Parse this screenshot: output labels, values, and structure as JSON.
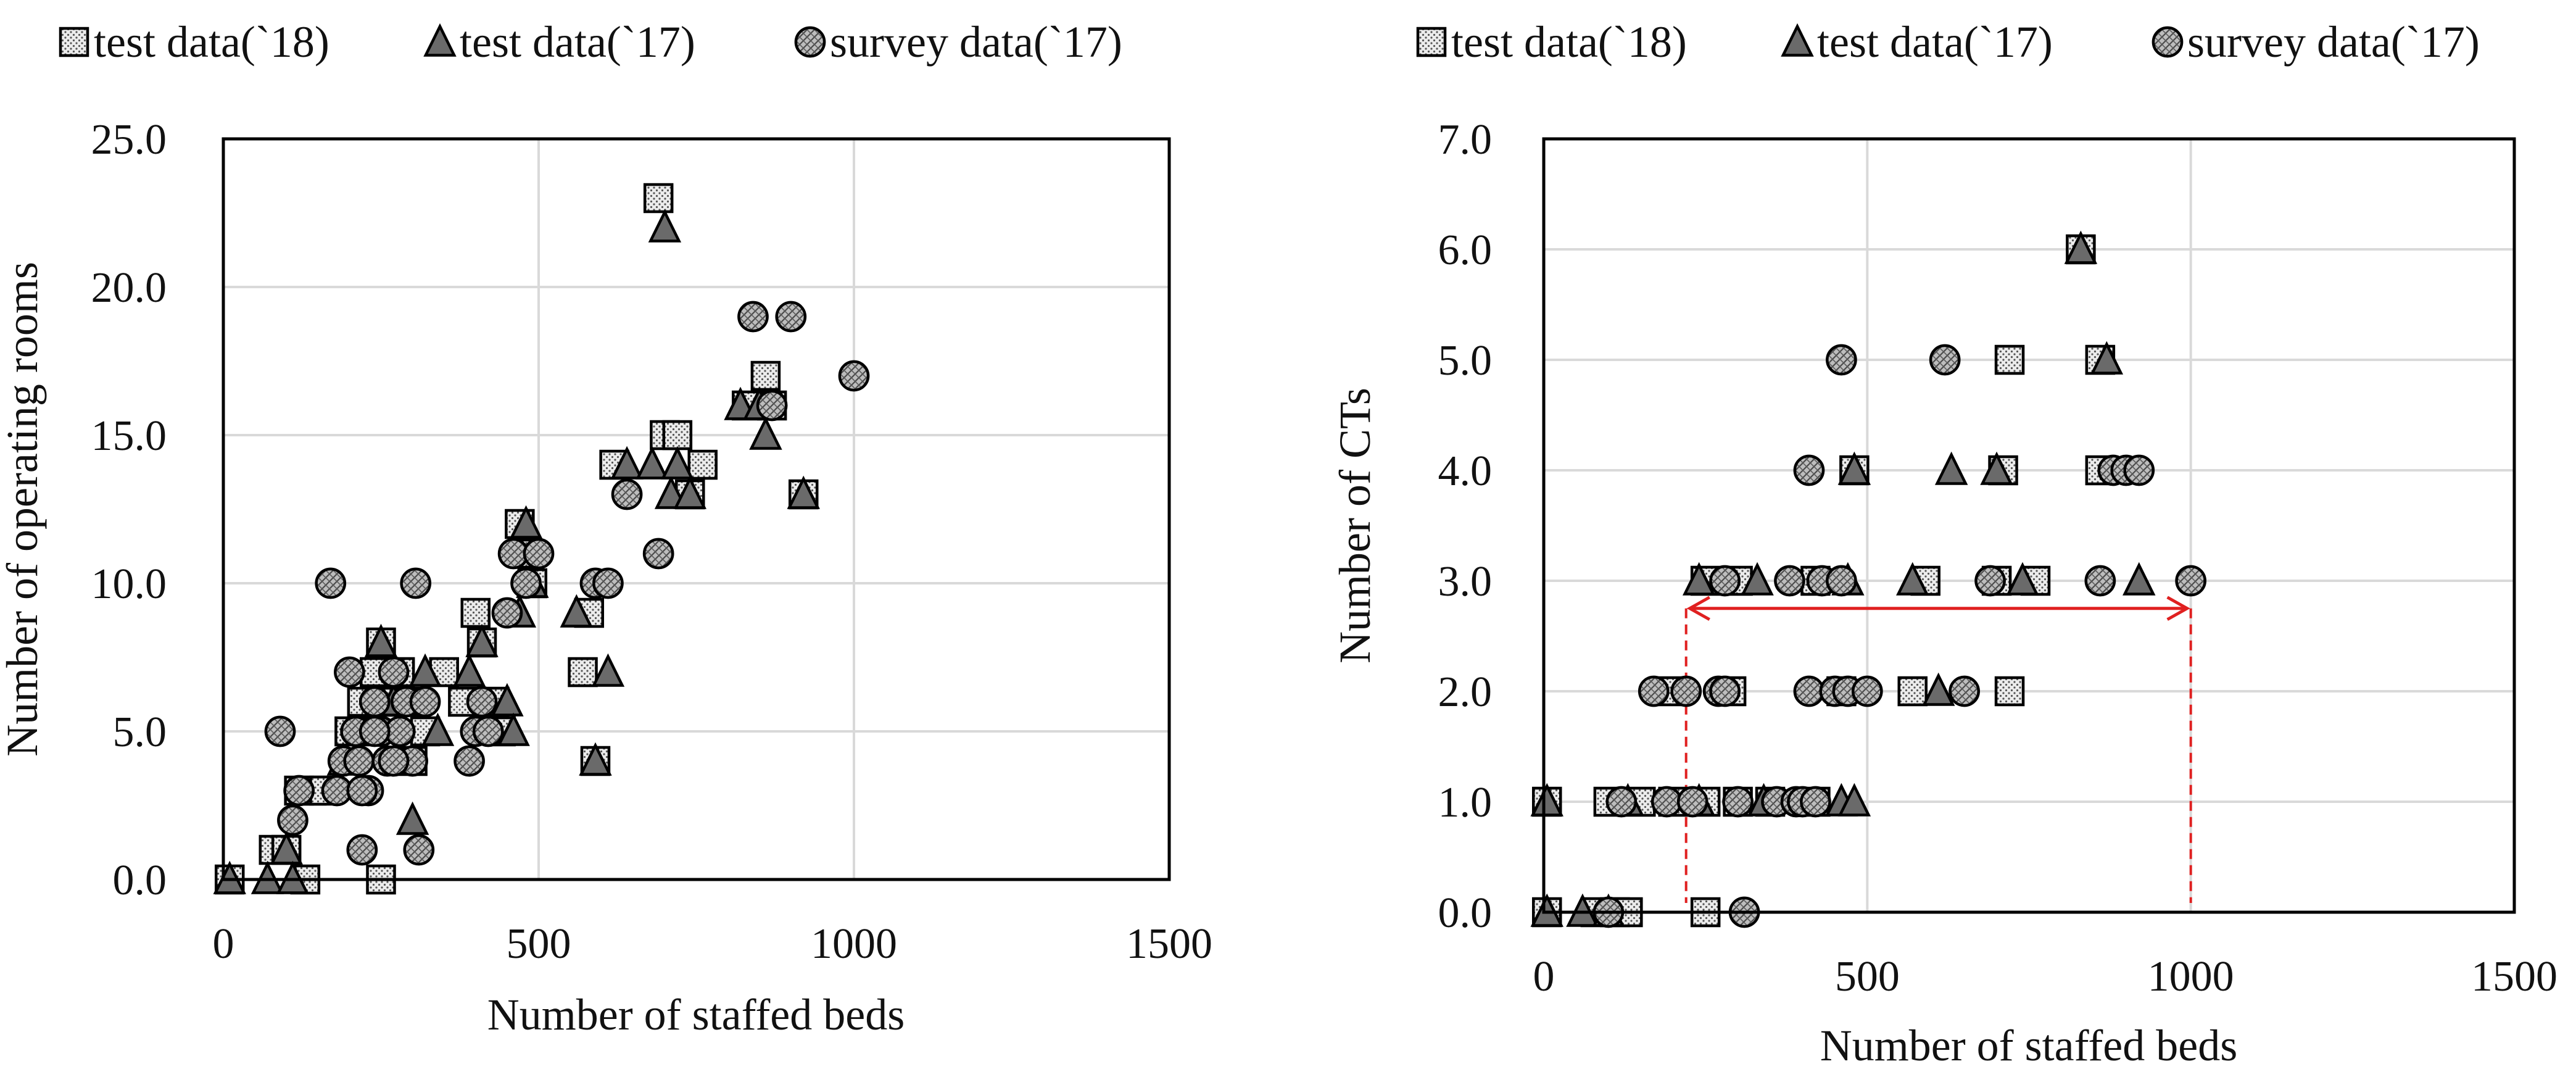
{
  "chart_data": [
    {
      "type": "scatter",
      "title": "",
      "xlabel": "Number of staffed beds",
      "ylabel": "Number of operating rooms",
      "xlim": [
        0,
        1500
      ],
      "ylim": [
        0,
        25
      ],
      "xticks": [
        0,
        500,
        1000,
        1500
      ],
      "yticks": [
        0,
        5,
        10,
        15,
        20,
        25
      ],
      "xtick_labels": [
        "0",
        "500",
        "1000",
        "1500"
      ],
      "ytick_labels": [
        "0.0",
        "5.0",
        "10.0",
        "15.0",
        "20.0",
        "25.0"
      ],
      "grid": true,
      "legend_position": "top",
      "series": [
        {
          "name": "test data(`18)",
          "marker": "square",
          "points": [
            [
              10,
              0
            ],
            [
              80,
              1
            ],
            [
              100,
              1
            ],
            [
              120,
              3
            ],
            [
              140,
              3
            ],
            [
              160,
              3
            ],
            [
              130,
              0
            ],
            [
              200,
              5
            ],
            [
              220,
              6
            ],
            [
              240,
              7
            ],
            [
              250,
              8
            ],
            [
              260,
              6
            ],
            [
              280,
              7
            ],
            [
              300,
              6
            ],
            [
              320,
              5
            ],
            [
              350,
              7
            ],
            [
              380,
              6
            ],
            [
              400,
              9
            ],
            [
              410,
              8
            ],
            [
              430,
              6
            ],
            [
              440,
              5
            ],
            [
              470,
              12
            ],
            [
              490,
              10
            ],
            [
              480,
              11
            ],
            [
              570,
              7
            ],
            [
              580,
              9
            ],
            [
              590,
              4
            ],
            [
              620,
              14
            ],
            [
              690,
              23
            ],
            [
              700,
              15
            ],
            [
              720,
              15
            ],
            [
              740,
              13
            ],
            [
              760,
              14
            ],
            [
              830,
              16
            ],
            [
              860,
              17
            ],
            [
              870,
              16
            ],
            [
              920,
              13
            ],
            [
              250,
              0
            ],
            [
              300,
              4
            ],
            [
              230,
              5
            ]
          ]
        },
        {
          "name": "test data(`17)",
          "marker": "triangle",
          "points": [
            [
              10,
              0
            ],
            [
              70,
              0
            ],
            [
              100,
              1
            ],
            [
              110,
              0
            ],
            [
              190,
              4
            ],
            [
              220,
              5
            ],
            [
              250,
              8
            ],
            [
              270,
              6
            ],
            [
              300,
              2
            ],
            [
              320,
              7
            ],
            [
              340,
              5
            ],
            [
              390,
              7
            ],
            [
              410,
              8
            ],
            [
              450,
              6
            ],
            [
              460,
              5
            ],
            [
              470,
              9
            ],
            [
              480,
              12
            ],
            [
              490,
              10
            ],
            [
              560,
              9
            ],
            [
              610,
              7
            ],
            [
              590,
              4
            ],
            [
              640,
              14
            ],
            [
              680,
              14
            ],
            [
              700,
              22
            ],
            [
              710,
              13
            ],
            [
              720,
              14
            ],
            [
              740,
              13
            ],
            [
              820,
              16
            ],
            [
              850,
              16
            ],
            [
              860,
              15
            ],
            [
              920,
              13
            ],
            [
              280,
              4
            ],
            [
              300,
              6
            ]
          ]
        },
        {
          "name": "survey data(`17)",
          "marker": "circle",
          "points": [
            [
              90,
              5
            ],
            [
              110,
              2
            ],
            [
              120,
              3
            ],
            [
              170,
              10
            ],
            [
              180,
              3
            ],
            [
              190,
              4
            ],
            [
              200,
              7
            ],
            [
              210,
              5
            ],
            [
              215,
              4
            ],
            [
              220,
              1
            ],
            [
              230,
              3
            ],
            [
              240,
              6
            ],
            [
              250,
              5
            ],
            [
              260,
              4
            ],
            [
              270,
              7
            ],
            [
              280,
              5
            ],
            [
              290,
              6
            ],
            [
              300,
              4
            ],
            [
              305,
              10
            ],
            [
              310,
              1
            ],
            [
              320,
              6
            ],
            [
              390,
              4
            ],
            [
              400,
              5
            ],
            [
              410,
              6
            ],
            [
              420,
              5
            ],
            [
              450,
              9
            ],
            [
              460,
              11
            ],
            [
              480,
              10
            ],
            [
              500,
              11
            ],
            [
              590,
              10
            ],
            [
              610,
              10
            ],
            [
              640,
              13
            ],
            [
              690,
              11
            ],
            [
              840,
              19
            ],
            [
              870,
              16
            ],
            [
              900,
              19
            ],
            [
              1000,
              17
            ],
            [
              220,
              3
            ],
            [
              240,
              5
            ],
            [
              270,
              4
            ]
          ]
        }
      ]
    },
    {
      "type": "scatter",
      "title": "",
      "xlabel": "Number of staffed beds",
      "ylabel": "Number of CTs",
      "xlim": [
        0,
        1500
      ],
      "ylim": [
        0,
        7
      ],
      "xticks": [
        0,
        500,
        1000,
        1500
      ],
      "yticks": [
        0,
        1,
        2,
        3,
        4,
        5,
        6,
        7
      ],
      "xtick_labels": [
        "0",
        "500",
        "1000",
        "1500"
      ],
      "ytick_labels": [
        "0.0",
        "1.0",
        "2.0",
        "3.0",
        "4.0",
        "5.0",
        "6.0",
        "7.0"
      ],
      "grid": true,
      "legend_position": "top",
      "annotation": {
        "type": "range-arrow",
        "color": "#e02020",
        "from_x": 220,
        "to_x": 1000,
        "arrow_y": 2.75,
        "drop_to_y": 0
      },
      "series": [
        {
          "name": "test data(`18)",
          "marker": "square",
          "points": [
            [
              5,
              0
            ],
            [
              80,
              0
            ],
            [
              110,
              0
            ],
            [
              130,
              0
            ],
            [
              5,
              1
            ],
            [
              100,
              1
            ],
            [
              150,
              1
            ],
            [
              200,
              1
            ],
            [
              250,
              1
            ],
            [
              300,
              1
            ],
            [
              350,
              1
            ],
            [
              420,
              1
            ],
            [
              200,
              2
            ],
            [
              290,
              2
            ],
            [
              460,
              2
            ],
            [
              570,
              2
            ],
            [
              720,
              2
            ],
            [
              250,
              3
            ],
            [
              300,
              3
            ],
            [
              420,
              3
            ],
            [
              590,
              3
            ],
            [
              700,
              3
            ],
            [
              760,
              3
            ],
            [
              480,
              4
            ],
            [
              710,
              4
            ],
            [
              860,
              4
            ],
            [
              720,
              5
            ],
            [
              860,
              5
            ],
            [
              830,
              6
            ],
            [
              250,
              0
            ]
          ]
        },
        {
          "name": "test data(`17)",
          "marker": "triangle",
          "points": [
            [
              5,
              0
            ],
            [
              60,
              0
            ],
            [
              100,
              0
            ],
            [
              5,
              1
            ],
            [
              130,
              1
            ],
            [
              240,
              1
            ],
            [
              340,
              1
            ],
            [
              460,
              1
            ],
            [
              480,
              1
            ],
            [
              610,
              2
            ],
            [
              240,
              3
            ],
            [
              330,
              3
            ],
            [
              470,
              3
            ],
            [
              570,
              3
            ],
            [
              740,
              3
            ],
            [
              920,
              3
            ],
            [
              480,
              4
            ],
            [
              630,
              4
            ],
            [
              700,
              4
            ],
            [
              870,
              5
            ],
            [
              830,
              6
            ]
          ]
        },
        {
          "name": "survey data(`17)",
          "marker": "circle",
          "points": [
            [
              100,
              0
            ],
            [
              310,
              0
            ],
            [
              120,
              1
            ],
            [
              190,
              1
            ],
            [
              230,
              1
            ],
            [
              300,
              1
            ],
            [
              360,
              1
            ],
            [
              390,
              1
            ],
            [
              400,
              1
            ],
            [
              420,
              1
            ],
            [
              170,
              2
            ],
            [
              220,
              2
            ],
            [
              270,
              2
            ],
            [
              280,
              2
            ],
            [
              410,
              2
            ],
            [
              450,
              2
            ],
            [
              470,
              2
            ],
            [
              500,
              2
            ],
            [
              650,
              2
            ],
            [
              280,
              3
            ],
            [
              380,
              3
            ],
            [
              430,
              3
            ],
            [
              460,
              3
            ],
            [
              690,
              3
            ],
            [
              860,
              3
            ],
            [
              1000,
              3
            ],
            [
              410,
              4
            ],
            [
              880,
              4
            ],
            [
              900,
              4
            ],
            [
              920,
              4
            ],
            [
              460,
              5
            ],
            [
              620,
              5
            ]
          ]
        }
      ]
    }
  ]
}
